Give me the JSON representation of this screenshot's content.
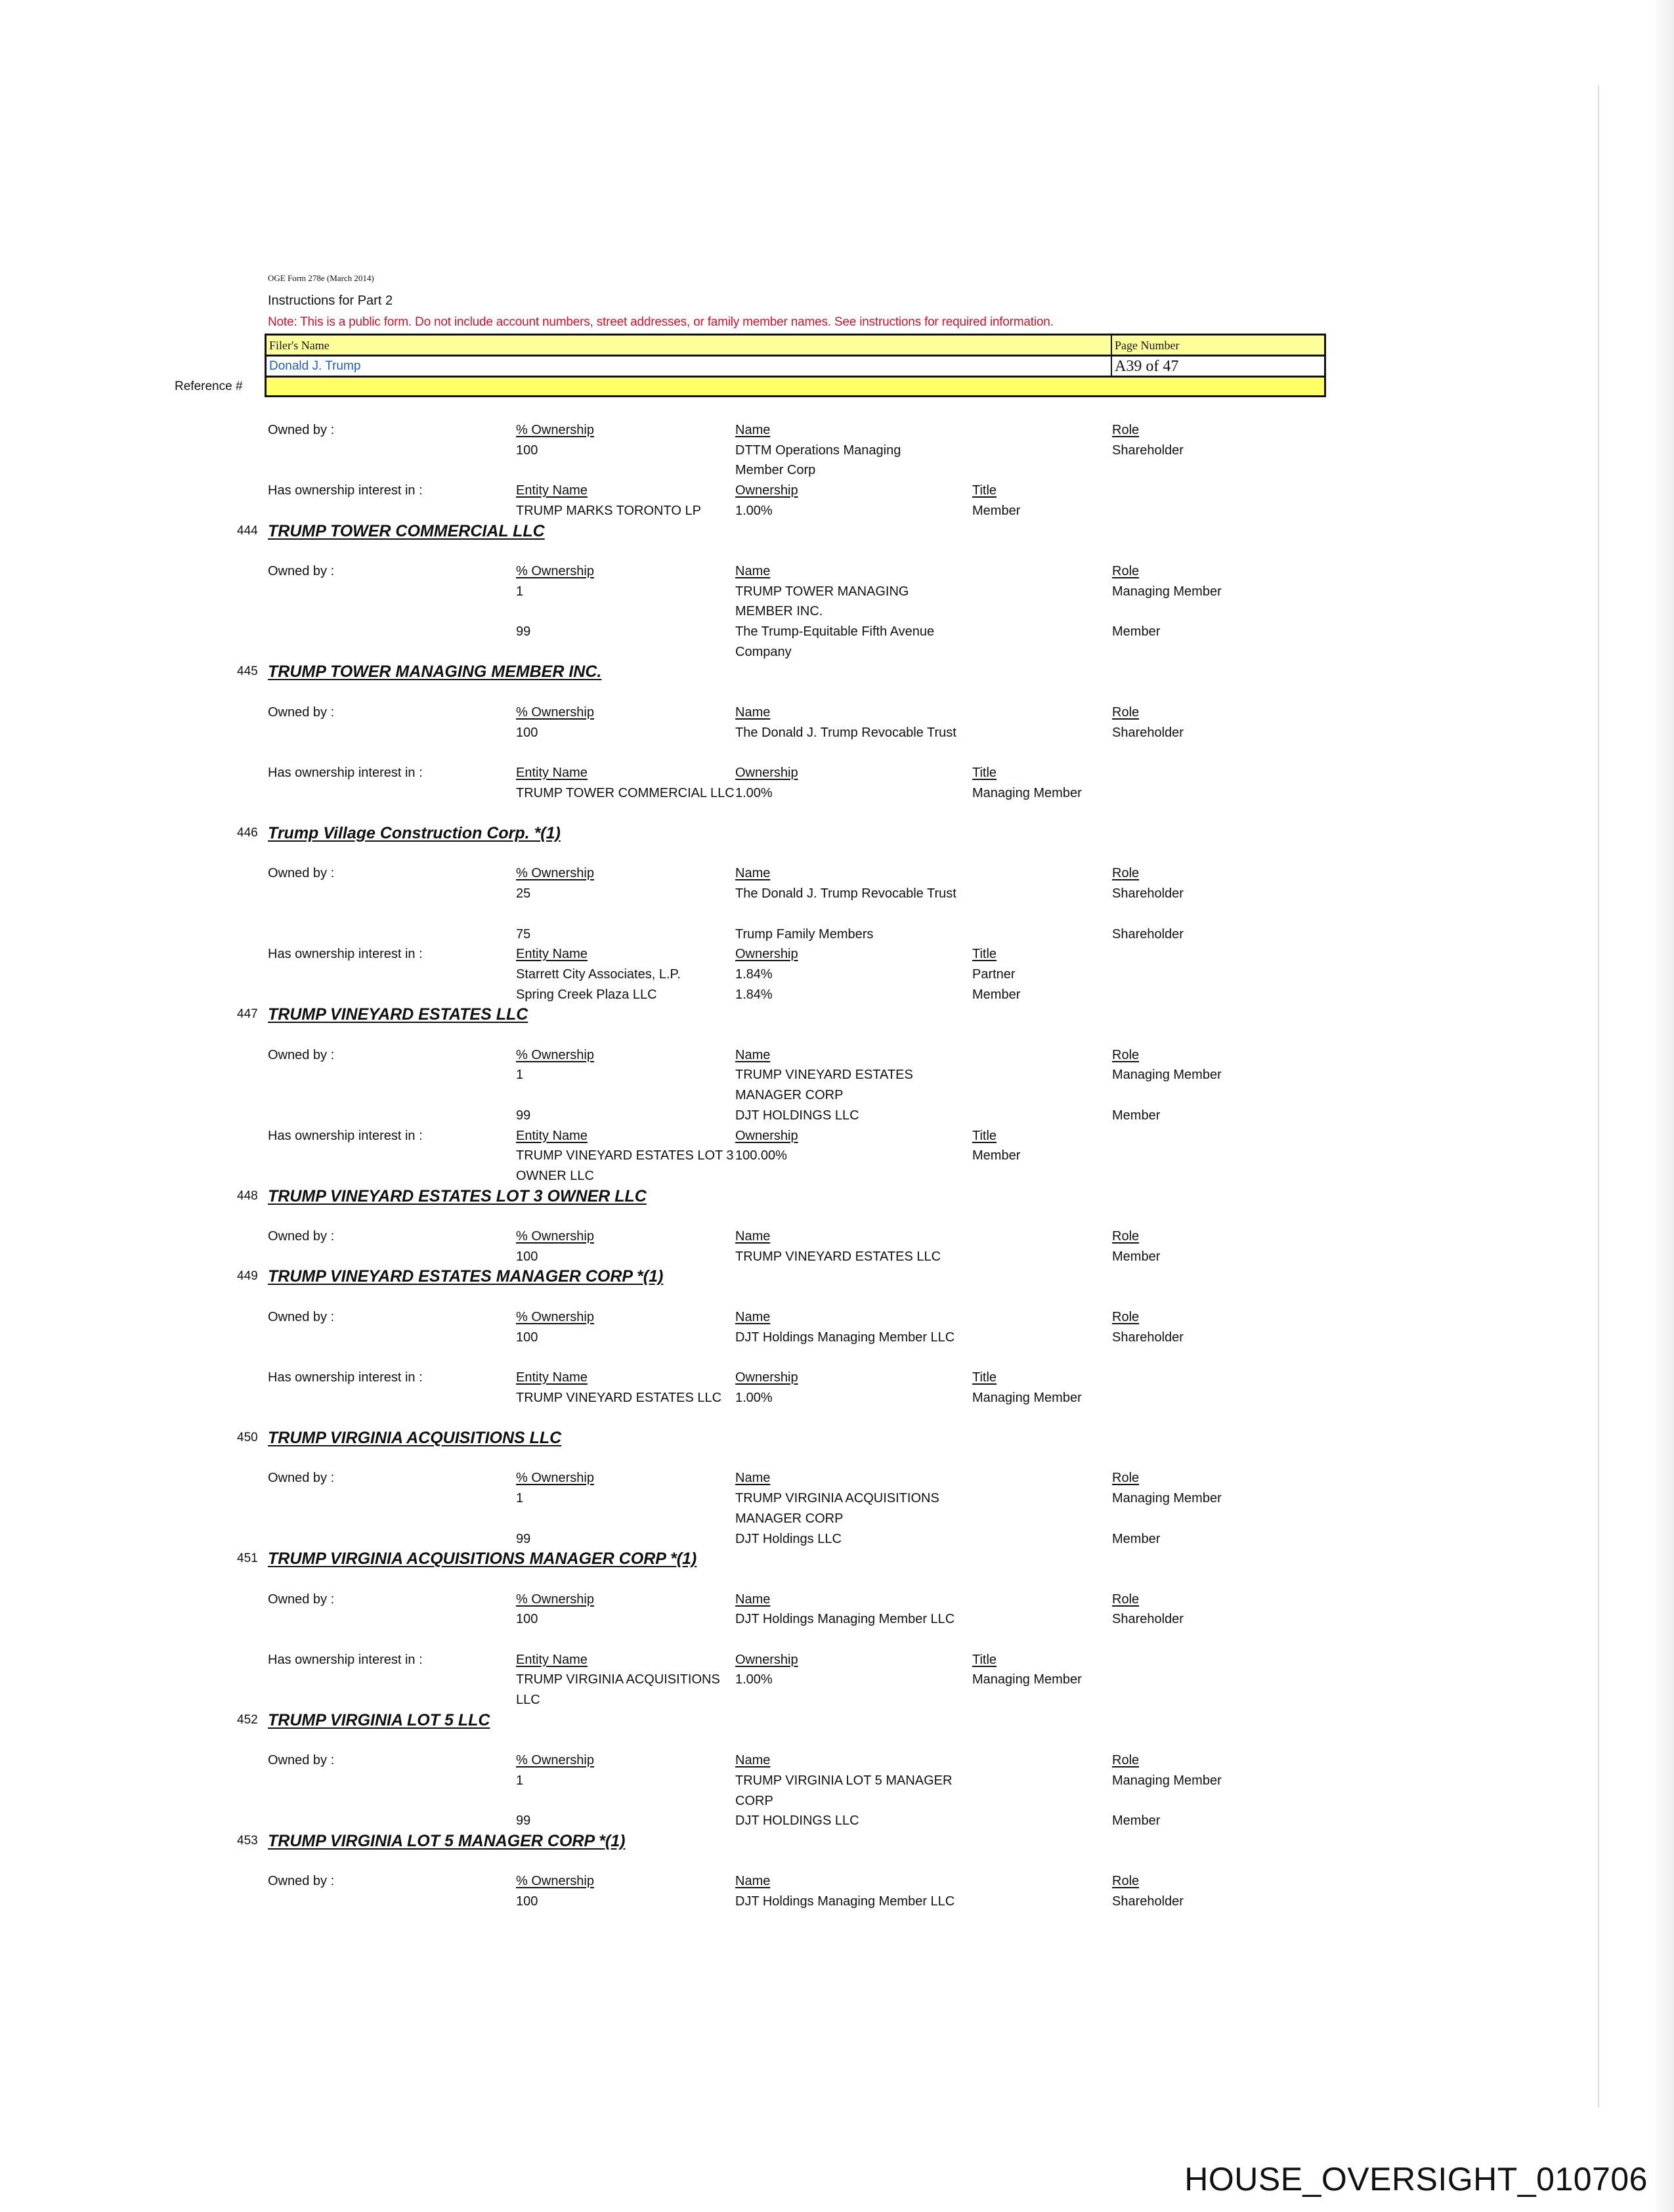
{
  "header": {
    "form_id": "OGE Form 278e (March 2014)",
    "instructions": "Instructions for Part 2",
    "note": "Note: This is a public form. Do not include account numbers, street addresses, or family member names.  See instructions for required information.",
    "filer_label": "Filer's Name",
    "filer_name": "Donald J. Trump",
    "page_label": "Page Number",
    "page_number": "A39 of 47",
    "reference_label": "Reference #",
    "reference_value": ""
  },
  "labels": {
    "owned_by": "Owned by :",
    "interest_in": "Has ownership interest in :",
    "pct_ownership": "% Ownership",
    "name": "Name",
    "role": "Role",
    "entity_name": "Entity Name",
    "ownership": "Ownership",
    "title": "Title"
  },
  "sections": [
    {
      "number": "",
      "name": "",
      "owned_by": [
        {
          "pct": "100",
          "name": [
            "DTTM Operations Managing",
            "Member Corp"
          ],
          "role": "Shareholder"
        }
      ],
      "interest": [
        {
          "entity": [
            "TRUMP MARKS TORONTO LP"
          ],
          "ownership": "1.00%",
          "title": "Member"
        }
      ]
    },
    {
      "number": "444",
      "name": "TRUMP TOWER COMMERCIAL LLC",
      "owned_by": [
        {
          "pct": "1",
          "name": [
            "TRUMP TOWER MANAGING",
            "MEMBER INC."
          ],
          "role": "Managing Member"
        },
        {
          "pct": "99",
          "name": [
            "The Trump-Equitable Fifth Avenue",
            "Company"
          ],
          "role": "Member"
        }
      ],
      "interest": []
    },
    {
      "number": "445",
      "name": "TRUMP TOWER MANAGING MEMBER INC.",
      "owned_by": [
        {
          "pct": "100",
          "name": [
            "The Donald J. Trump Revocable Trust"
          ],
          "role": "Shareholder"
        }
      ],
      "interest": [
        {
          "entity": [
            "TRUMP TOWER COMMERCIAL LLC"
          ],
          "ownership": "1.00%",
          "title": "Managing Member"
        }
      ]
    },
    {
      "number": "446",
      "name": "Trump Village Construction Corp. *(1)",
      "owned_by": [
        {
          "pct": "25",
          "name": [
            "The Donald J. Trump Revocable Trust"
          ],
          "role": "Shareholder"
        },
        {
          "pct": "75",
          "name": [
            "Trump Family Members"
          ],
          "role": "Shareholder"
        }
      ],
      "interest": [
        {
          "entity": [
            "Starrett City Associates, L.P."
          ],
          "ownership": "1.84%",
          "title": "Partner"
        },
        {
          "entity": [
            "Spring Creek Plaza LLC"
          ],
          "ownership": "1.84%",
          "title": "Member"
        }
      ]
    },
    {
      "number": "447",
      "name": "TRUMP VINEYARD ESTATES LLC",
      "owned_by": [
        {
          "pct": "1",
          "name": [
            "TRUMP VINEYARD ESTATES",
            "MANAGER CORP"
          ],
          "role": "Managing Member"
        },
        {
          "pct": "99",
          "name": [
            "DJT HOLDINGS LLC"
          ],
          "role": "Member"
        }
      ],
      "interest": [
        {
          "entity": [
            "TRUMP VINEYARD ESTATES LOT 3",
            "OWNER LLC"
          ],
          "ownership": "100.00%",
          "title": "Member"
        }
      ]
    },
    {
      "number": "448",
      "name": "TRUMP VINEYARD ESTATES LOT 3 OWNER LLC",
      "owned_by": [
        {
          "pct": "100",
          "name": [
            "TRUMP VINEYARD ESTATES LLC"
          ],
          "role": "Member"
        }
      ],
      "interest": []
    },
    {
      "number": "449",
      "name": "TRUMP VINEYARD ESTATES MANAGER CORP *(1)",
      "owned_by": [
        {
          "pct": "100",
          "name": [
            "DJT Holdings Managing Member LLC"
          ],
          "role": "Shareholder"
        }
      ],
      "interest": [
        {
          "entity": [
            "TRUMP VINEYARD ESTATES LLC"
          ],
          "ownership": "1.00%",
          "title": "Managing Member"
        }
      ]
    },
    {
      "number": "450",
      "name": "TRUMP VIRGINIA ACQUISITIONS LLC",
      "owned_by": [
        {
          "pct": "1",
          "name": [
            "TRUMP VIRGINIA ACQUISITIONS",
            "MANAGER CORP"
          ],
          "role": "Managing Member"
        },
        {
          "pct": "99",
          "name": [
            "DJT Holdings LLC"
          ],
          "role": "Member"
        }
      ],
      "interest": []
    },
    {
      "number": "451",
      "name": "TRUMP VIRGINIA ACQUISITIONS MANAGER CORP *(1)",
      "owned_by": [
        {
          "pct": "100",
          "name": [
            "DJT Holdings Managing Member LLC"
          ],
          "role": "Shareholder"
        }
      ],
      "interest": [
        {
          "entity": [
            "TRUMP VIRGINIA ACQUISITIONS",
            "LLC"
          ],
          "ownership": "1.00%",
          "title": "Managing Member"
        }
      ]
    },
    {
      "number": "452",
      "name": "TRUMP VIRGINIA LOT 5 LLC",
      "owned_by": [
        {
          "pct": "1",
          "name": [
            "TRUMP VIRGINIA LOT 5 MANAGER",
            "CORP"
          ],
          "role": "Managing Member"
        },
        {
          "pct": "99",
          "name": [
            "DJT HOLDINGS LLC"
          ],
          "role": "Member"
        }
      ],
      "interest": []
    },
    {
      "number": "453",
      "name": "TRUMP VIRGINIA LOT 5 MANAGER CORP *(1)",
      "owned_by": [
        {
          "pct": "100",
          "name": [
            "DJT Holdings Managing Member LLC"
          ],
          "role": "Shareholder"
        }
      ],
      "interest": []
    }
  ],
  "footer": {
    "bates": "HOUSE_OVERSIGHT_010706"
  },
  "colors": {
    "note_red": "#d3122b",
    "highlight_yellow": "#ffff99",
    "filer_blue": "#1f5fbf"
  }
}
